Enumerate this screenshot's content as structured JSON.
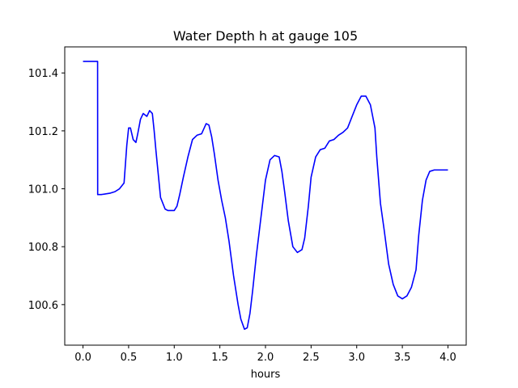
{
  "chart_data": {
    "type": "line",
    "title": "Water Depth h at gauge 105",
    "xlabel": "hours",
    "ylabel": "",
    "xlim": [
      -0.2,
      4.2
    ],
    "ylim": [
      100.46,
      101.49
    ],
    "xticks": [
      0.0,
      0.5,
      1.0,
      1.5,
      2.0,
      2.5,
      3.0,
      3.5,
      4.0
    ],
    "xtick_labels": [
      "0.0",
      "0.5",
      "1.0",
      "1.5",
      "2.0",
      "2.5",
      "3.0",
      "3.5",
      "4.0"
    ],
    "yticks": [
      100.6,
      100.8,
      101.0,
      101.2,
      101.4
    ],
    "ytick_labels": [
      "100.6",
      "100.8",
      "101.0",
      "101.2",
      "101.4"
    ],
    "grid": false,
    "series": [
      {
        "color": "#0000ff",
        "x": [
          0.0,
          0.16,
          0.161,
          0.2,
          0.3,
          0.35,
          0.4,
          0.45,
          0.48,
          0.5,
          0.52,
          0.55,
          0.58,
          0.6,
          0.63,
          0.66,
          0.7,
          0.73,
          0.76,
          0.78,
          0.8,
          0.85,
          0.9,
          0.93,
          0.97,
          1.0,
          1.03,
          1.06,
          1.1,
          1.15,
          1.2,
          1.25,
          1.3,
          1.35,
          1.38,
          1.41,
          1.44,
          1.48,
          1.52,
          1.56,
          1.6,
          1.65,
          1.7,
          1.73,
          1.77,
          1.8,
          1.83,
          1.86,
          1.9,
          1.95,
          2.0,
          2.05,
          2.1,
          2.15,
          2.18,
          2.21,
          2.25,
          2.3,
          2.35,
          2.4,
          2.43,
          2.47,
          2.5,
          2.55,
          2.6,
          2.65,
          2.7,
          2.75,
          2.8,
          2.85,
          2.9,
          2.95,
          3.0,
          3.05,
          3.1,
          3.15,
          3.2,
          3.22,
          3.26,
          3.3,
          3.35,
          3.4,
          3.45,
          3.5,
          3.55,
          3.6,
          3.65,
          3.68,
          3.72,
          3.76,
          3.8,
          3.85,
          3.9,
          3.95,
          4.0
        ],
        "y": [
          101.44,
          101.44,
          100.98,
          100.98,
          100.985,
          100.99,
          101.0,
          101.02,
          101.15,
          101.21,
          101.21,
          101.17,
          101.16,
          101.19,
          101.24,
          101.26,
          101.25,
          101.27,
          101.26,
          101.2,
          101.13,
          100.97,
          100.93,
          100.925,
          100.925,
          100.925,
          100.94,
          100.98,
          101.04,
          101.11,
          101.17,
          101.185,
          101.19,
          101.225,
          101.22,
          101.18,
          101.12,
          101.03,
          100.96,
          100.9,
          100.82,
          100.7,
          100.6,
          100.55,
          100.515,
          100.52,
          100.57,
          100.65,
          100.77,
          100.9,
          101.03,
          101.1,
          101.115,
          101.11,
          101.06,
          100.99,
          100.89,
          100.8,
          100.78,
          100.79,
          100.83,
          100.94,
          101.04,
          101.11,
          101.135,
          101.14,
          101.165,
          101.17,
          101.185,
          101.195,
          101.21,
          101.25,
          101.29,
          101.32,
          101.32,
          101.29,
          101.21,
          101.11,
          100.95,
          100.86,
          100.74,
          100.67,
          100.63,
          100.62,
          100.63,
          100.66,
          100.72,
          100.84,
          100.96,
          101.03,
          101.06,
          101.065,
          101.065,
          101.065,
          101.065
        ]
      }
    ]
  }
}
